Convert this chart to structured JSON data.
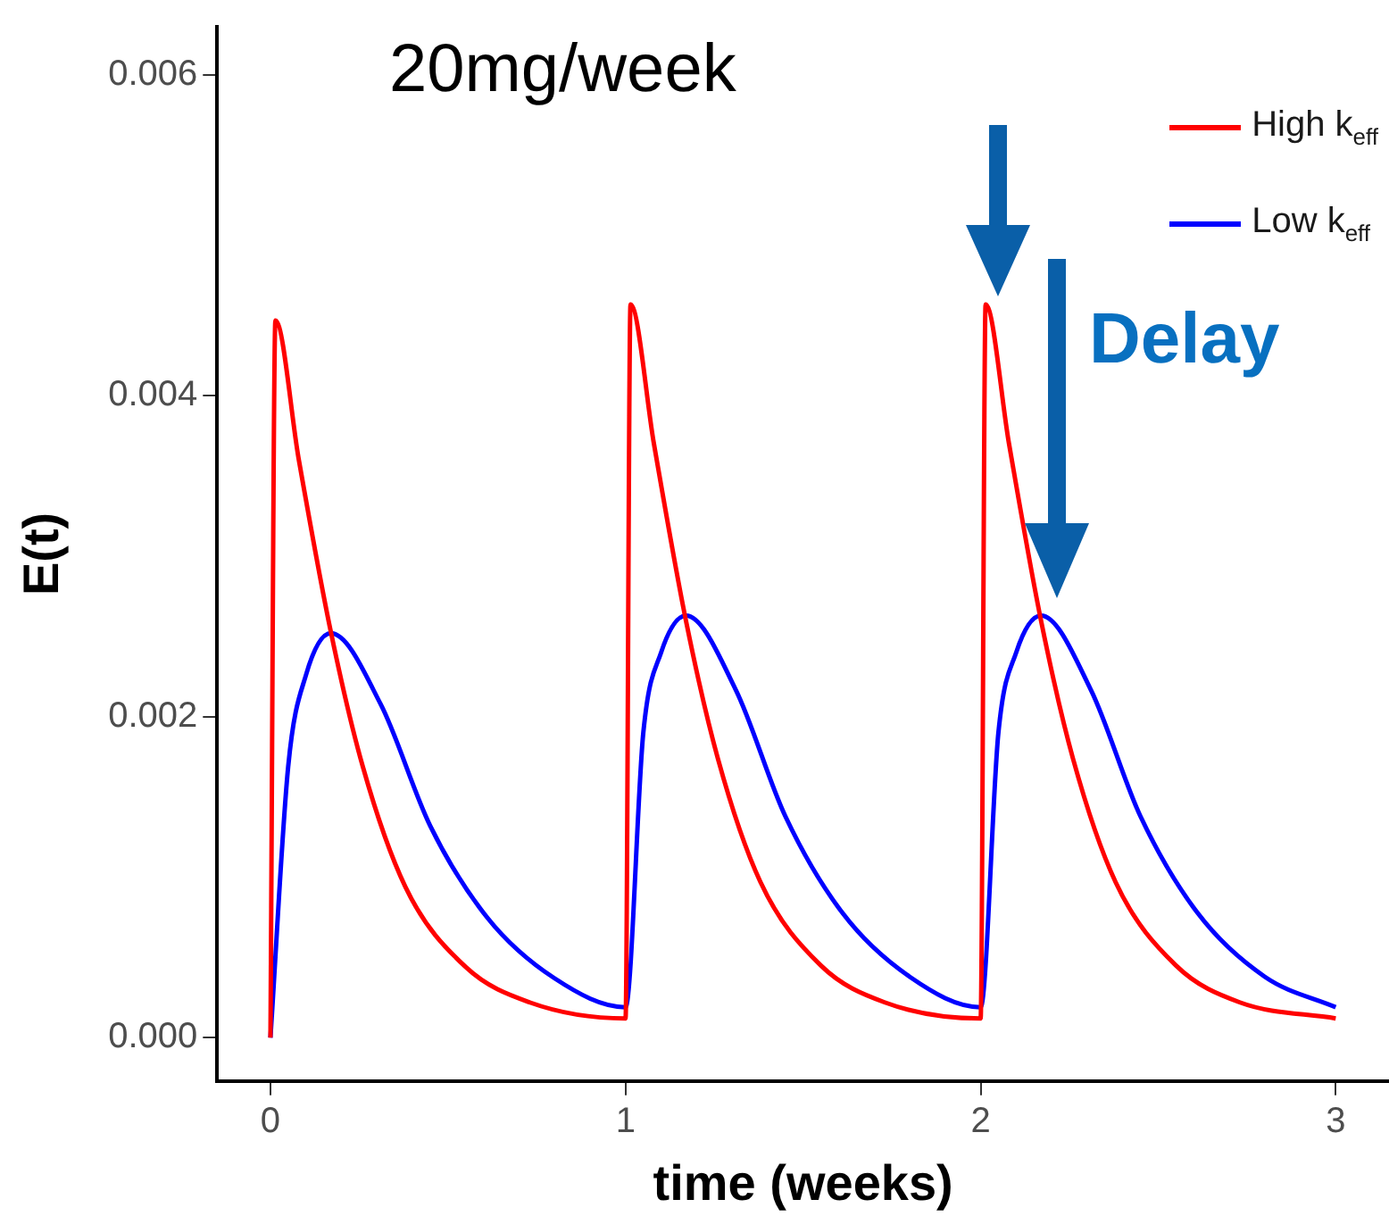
{
  "chart_data": {
    "type": "line",
    "title": "20mg/week",
    "xlabel": "time (weeks)",
    "ylabel": "E(t)",
    "annotations": [
      "Delay"
    ],
    "xlim": [
      -0.15,
      3.15
    ],
    "xticks": [
      0,
      1,
      2,
      3
    ],
    "ylim": [
      -0.00027,
      0.0063
    ],
    "yticks": [
      {
        "value": 0,
        "label": "0.000"
      },
      {
        "value": 0.002,
        "label": "0.002"
      },
      {
        "value": 0.004,
        "label": "0.004"
      },
      {
        "value": 0.006,
        "label": "0.006"
      }
    ],
    "legend": "top right",
    "marker": "none",
    "line_style": "solid",
    "series": [
      {
        "name": "High k$_{eff}$",
        "color": "#ff0000",
        "x": [
          0,
          0.014,
          0.08,
          0.17,
          0.26,
          0.38,
          0.55,
          0.73,
          1.0,
          1.014,
          1.08,
          1.17,
          1.26,
          1.38,
          1.55,
          1.73,
          2.0,
          2.014,
          2.08,
          2.17,
          2.26,
          2.38,
          2.55,
          2.73,
          3.0
        ],
        "values": [
          0,
          0.00447,
          0.0036,
          0.00253,
          0.00169,
          0.00094,
          0.00044,
          0.00022,
          0.00012,
          0.00457,
          0.0037,
          0.0026,
          0.00174,
          0.00097,
          0.00045,
          0.00022,
          0.00012,
          0.00457,
          0.0037,
          0.0026,
          0.00174,
          0.00097,
          0.00045,
          0.00022,
          0.00012
        ]
      },
      {
        "name": "Low k$_{eff}$",
        "color": "#0000ff",
        "x": [
          0,
          0.05,
          0.1,
          0.17,
          0.31,
          0.45,
          0.61,
          0.8,
          1.0,
          1.05,
          1.1,
          1.17,
          1.31,
          1.45,
          1.61,
          1.8,
          2.0,
          2.05,
          2.1,
          2.17,
          2.31,
          2.45,
          2.61,
          2.8,
          3.0
        ],
        "values": [
          0,
          0.00169,
          0.00226,
          0.00252,
          0.00208,
          0.00132,
          0.00075,
          0.00037,
          0.00019,
          0.0019,
          0.0024,
          0.00263,
          0.00217,
          0.00138,
          0.00078,
          0.00038,
          0.00019,
          0.0019,
          0.0024,
          0.00263,
          0.00217,
          0.00138,
          0.00078,
          0.00038,
          0.00019
        ]
      }
    ]
  }
}
